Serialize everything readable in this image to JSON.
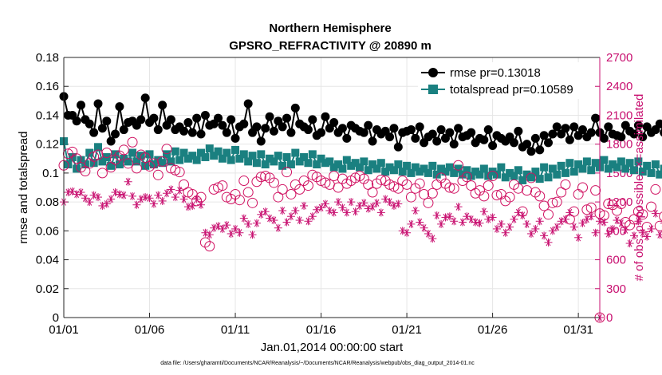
{
  "chart_data": {
    "type": "line",
    "title_line1": "Northern Hemisphere",
    "title_line2": "GPSRO_REFRACTIVITY @ 20890 m",
    "xlabel": "Jan.01,2014 00:00:00 start",
    "ylabel_left": "rmse and totalspread",
    "ylabel_right": "# of obs: o=possible; ×=assimilated",
    "footnote": "data file: /Users/gharamti/Documents/NCAR/Reanalysis/~/Documents/NCAR/Reanalysis/webpub/obs_diag_output_2014-01.nc",
    "xlim": [
      1,
      32.25
    ],
    "ylim_left": [
      0,
      0.18
    ],
    "ylim_right": [
      0,
      2700
    ],
    "x_ticks": [
      1,
      6,
      11,
      16,
      21,
      26,
      31
    ],
    "x_tick_labels": [
      "01/01",
      "01/06",
      "01/11",
      "01/16",
      "01/21",
      "01/26",
      "01/31"
    ],
    "y_left_ticks": [
      "0",
      "0.02",
      "0.04",
      "0.06",
      "0.08",
      "0.1",
      "0.12",
      "0.14",
      "0.16",
      "0.18"
    ],
    "y_right_ticks": [
      "0",
      "300",
      "600",
      "900",
      "1200",
      "1500",
      "1800",
      "2100",
      "2400",
      "2700"
    ],
    "time_step_days": 0.25,
    "series": [
      {
        "name": "rmse pr=0.13018",
        "axis": "left",
        "color": "#000000",
        "marker": "circle",
        "values": [
          0.153,
          0.14,
          0.14,
          0.136,
          0.147,
          0.137,
          0.134,
          0.128,
          0.148,
          0.131,
          0.136,
          0.122,
          0.127,
          0.146,
          0.13,
          0.135,
          0.136,
          0.133,
          0.137,
          0.152,
          0.135,
          0.138,
          0.13,
          0.147,
          0.133,
          0.137,
          0.13,
          0.132,
          0.129,
          0.135,
          0.128,
          0.138,
          0.127,
          0.14,
          0.133,
          0.134,
          0.138,
          0.133,
          0.128,
          0.137,
          0.124,
          0.132,
          0.134,
          0.148,
          0.128,
          0.132,
          0.122,
          0.131,
          0.139,
          0.129,
          0.136,
          0.132,
          0.138,
          0.128,
          0.145,
          0.134,
          0.132,
          0.13,
          0.137,
          0.126,
          0.128,
          0.139,
          0.131,
          0.135,
          0.128,
          0.131,
          0.124,
          0.133,
          0.131,
          0.129,
          0.128,
          0.133,
          0.122,
          0.13,
          0.127,
          0.129,
          0.125,
          0.131,
          0.118,
          0.128,
          0.129,
          0.13,
          0.124,
          0.132,
          0.121,
          0.125,
          0.127,
          0.122,
          0.13,
          0.124,
          0.128,
          0.12,
          0.131,
          0.125,
          0.126,
          0.128,
          0.121,
          0.124,
          0.123,
          0.13,
          0.119,
          0.126,
          0.124,
          0.122,
          0.125,
          0.121,
          0.129,
          0.118,
          0.12,
          0.115,
          0.124,
          0.116,
          0.126,
          0.121,
          0.127,
          0.132,
          0.127,
          0.131,
          0.123,
          0.132,
          0.126,
          0.13,
          0.125,
          0.128,
          0.138,
          0.128,
          0.124,
          0.132,
          0.127,
          0.126,
          0.125,
          0.133,
          0.129,
          0.127,
          0.133,
          0.125,
          0.132,
          0.128,
          0.13,
          0.134,
          0.128,
          0.132,
          0.119,
          0.136,
          0.137,
          0.134
        ]
      },
      {
        "name": "totalspread pr=0.10589",
        "axis": "left",
        "color": "#1a8080",
        "marker": "square",
        "values": [
          0.122,
          0.106,
          0.111,
          0.103,
          0.109,
          0.106,
          0.114,
          0.107,
          0.118,
          0.108,
          0.111,
          0.105,
          0.113,
          0.106,
          0.11,
          0.108,
          0.114,
          0.108,
          0.112,
          0.105,
          0.113,
          0.106,
          0.109,
          0.107,
          0.113,
          0.108,
          0.115,
          0.109,
          0.114,
          0.11,
          0.112,
          0.109,
          0.114,
          0.111,
          0.117,
          0.112,
          0.115,
          0.11,
          0.114,
          0.109,
          0.116,
          0.11,
          0.113,
          0.108,
          0.112,
          0.107,
          0.113,
          0.106,
          0.11,
          0.108,
          0.112,
          0.105,
          0.111,
          0.106,
          0.114,
          0.108,
          0.111,
          0.107,
          0.113,
          0.106,
          0.11,
          0.107,
          0.108,
          0.104,
          0.106,
          0.103,
          0.109,
          0.105,
          0.107,
          0.104,
          0.108,
          0.102,
          0.106,
          0.103,
          0.107,
          0.101,
          0.104,
          0.102,
          0.106,
          0.101,
          0.105,
          0.1,
          0.104,
          0.101,
          0.103,
          0.1,
          0.105,
          0.099,
          0.103,
          0.101,
          0.104,
          0.1,
          0.103,
          0.099,
          0.102,
          0.098,
          0.101,
          0.099,
          0.103,
          0.098,
          0.101,
          0.099,
          0.104,
          0.097,
          0.1,
          0.098,
          0.102,
          0.095,
          0.099,
          0.097,
          0.101,
          0.096,
          0.104,
          0.097,
          0.103,
          0.099,
          0.105,
          0.1,
          0.107,
          0.101,
          0.106,
          0.103,
          0.108,
          0.102,
          0.107,
          0.104,
          0.109,
          0.103,
          0.106,
          0.104,
          0.108,
          0.103,
          0.107,
          0.102,
          0.108,
          0.101,
          0.105,
          0.1,
          0.106,
          0.099,
          0.103,
          0.098,
          0.102,
          0.097,
          0.1,
          0.097
        ]
      },
      {
        "name": "possible obs",
        "axis": "right",
        "color": "#d01060",
        "marker": "open-circle",
        "values": [
          1580,
          1700,
          1720,
          1650,
          1560,
          1520,
          1600,
          1670,
          1690,
          1500,
          1710,
          1560,
          1640,
          1680,
          1740,
          1600,
          1820,
          1550,
          1690,
          1660,
          1570,
          1600,
          1480,
          1620,
          1750,
          1550,
          1530,
          1510,
          1380,
          1300,
          1280,
          1210,
          1250,
          780,
          740,
          1330,
          1350,
          1370,
          1250,
          1230,
          1280,
          1220,
          1420,
          1300,
          1190,
          1410,
          1460,
          1470,
          1450,
          1400,
          1250,
          1330,
          1510,
          1280,
          1380,
          1330,
          1420,
          1370,
          1480,
          1460,
          1420,
          1400,
          1380,
          1470,
          1350,
          1440,
          1390,
          1420,
          1450,
          1470,
          1440,
          1380,
          1300,
          1390,
          1430,
          1420,
          1380,
          1360,
          1340,
          1420,
          1380,
          1250,
          1340,
          1390,
          1280,
          1190,
          1290,
          1380,
          1450,
          1390,
          1350,
          1340,
          1580,
          1420,
          1460,
          1370,
          1290,
          1320,
          1260,
          1370,
          1470,
          1270,
          1280,
          1210,
          1250,
          1380,
          1340,
          1100,
          1320,
          1450,
          1300,
          1260,
          1160,
          1070,
          1190,
          1200,
          1300,
          1380,
          1020,
          1100,
          1280,
          1350,
          1120,
          1140,
          1320,
          1080,
          1060,
          1180,
          1170,
          1110,
          1180,
          990,
          960,
          1020,
          1100,
          1070,
          940,
          1150,
          1330,
          950,
          1050,
          1100,
          1250,
          1160
        ]
      },
      {
        "name": "assimilated obs",
        "axis": "right",
        "color": "#c81070",
        "marker": "asterisk",
        "values": [
          1200,
          1300,
          1310,
          1280,
          1300,
          1240,
          1200,
          1270,
          1250,
          1160,
          1180,
          1230,
          1300,
          1280,
          1270,
          1410,
          1260,
          1170,
          1230,
          1250,
          1240,
          1180,
          1270,
          1210,
          1290,
          1330,
          1250,
          1320,
          1230,
          1150,
          1160,
          1230,
          1170,
          880,
          860,
          930,
          950,
          920,
          960,
          870,
          920,
          880,
          1030,
          970,
          860,
          980,
          1070,
          1100,
          1030,
          1010,
          930,
          1110,
          990,
          1050,
          1110,
          1010,
          1160,
          1000,
          1050,
          1120,
          1140,
          1180,
          1110,
          1090,
          1200,
          1140,
          1090,
          1200,
          1100,
          1160,
          1190,
          1130,
          1150,
          1190,
          1090,
          1230,
          1200,
          1160,
          1180,
          900,
          880,
          970,
          1110,
          990,
          930,
          870,
          820,
          1060,
          970,
          1040,
          1050,
          1000,
          1150,
          990,
          1050,
          1020,
          990,
          980,
          1100,
          1020,
          1040,
          920,
          970,
          880,
          940,
          1020,
          1090,
          1060,
          970,
          870,
          920,
          1000,
          850,
          780,
          900,
          940,
          1000,
          1020,
          1090,
          940,
          830,
          980,
          1020,
          1050,
          880,
          1000,
          990,
          870,
          920,
          1010,
          980,
          910,
          770,
          850,
          1000,
          880,
          840,
          920,
          1080,
          860,
          980,
          840,
          1050,
          920
        ]
      }
    ]
  },
  "legend": {
    "rmse_label": "rmse pr=0.13018",
    "spread_label": "totalspread pr=0.10589"
  },
  "colors": {
    "rmse": "#000000",
    "spread": "#1a8080",
    "obs": "#d01060",
    "right_axis": "#c81070"
  }
}
